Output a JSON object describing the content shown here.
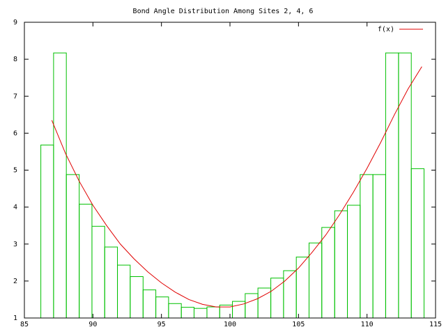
{
  "chart_data": {
    "type": "histogram",
    "title": "Bond Angle Distribution Among Sites 2, 4, 6",
    "bins": [
      86.2,
      87.13,
      88.06,
      89.0,
      89.93,
      90.86,
      91.79,
      92.72,
      93.66,
      94.59,
      95.52,
      96.45,
      97.38,
      98.32,
      99.25,
      100.18,
      101.11,
      102.04,
      102.98,
      103.91,
      104.84,
      105.77,
      106.7,
      107.64,
      108.57,
      109.5,
      110.43,
      111.36,
      112.3,
      113.23,
      114.16
    ],
    "values": [
      5.68,
      8.17,
      4.88,
      4.08,
      3.48,
      2.92,
      2.43,
      2.12,
      1.76,
      1.57,
      1.39,
      1.29,
      1.26,
      1.3,
      1.35,
      1.45,
      1.66,
      1.81,
      2.08,
      2.28,
      2.65,
      3.03,
      3.45,
      3.9,
      4.05,
      4.88,
      4.88,
      8.17,
      8.17,
      5.04
    ],
    "color": "#00c000",
    "series": [
      {
        "name": "f(x)",
        "type": "line",
        "color": "#e00000",
        "x": [
          87,
          88,
          89,
          90,
          91,
          92,
          93,
          94,
          95,
          96,
          97,
          98,
          99,
          100,
          101,
          102,
          103,
          104,
          105,
          106,
          107,
          108,
          109,
          110,
          111,
          112,
          113,
          114
        ],
        "values": [
          6.35,
          5.45,
          4.7,
          4.05,
          3.5,
          3.0,
          2.6,
          2.25,
          1.95,
          1.7,
          1.5,
          1.37,
          1.3,
          1.3,
          1.38,
          1.52,
          1.72,
          2.0,
          2.35,
          2.78,
          3.25,
          3.8,
          4.4,
          5.05,
          5.75,
          6.5,
          7.2,
          7.8
        ]
      }
    ],
    "xlim": [
      85,
      115
    ],
    "xticks": [
      85,
      90,
      95,
      100,
      105,
      110,
      115
    ],
    "ylim": [
      1,
      9
    ],
    "yticks": [
      1,
      2,
      3,
      4,
      5,
      6,
      7,
      8,
      9
    ],
    "grid": false,
    "legend": "top-right"
  }
}
